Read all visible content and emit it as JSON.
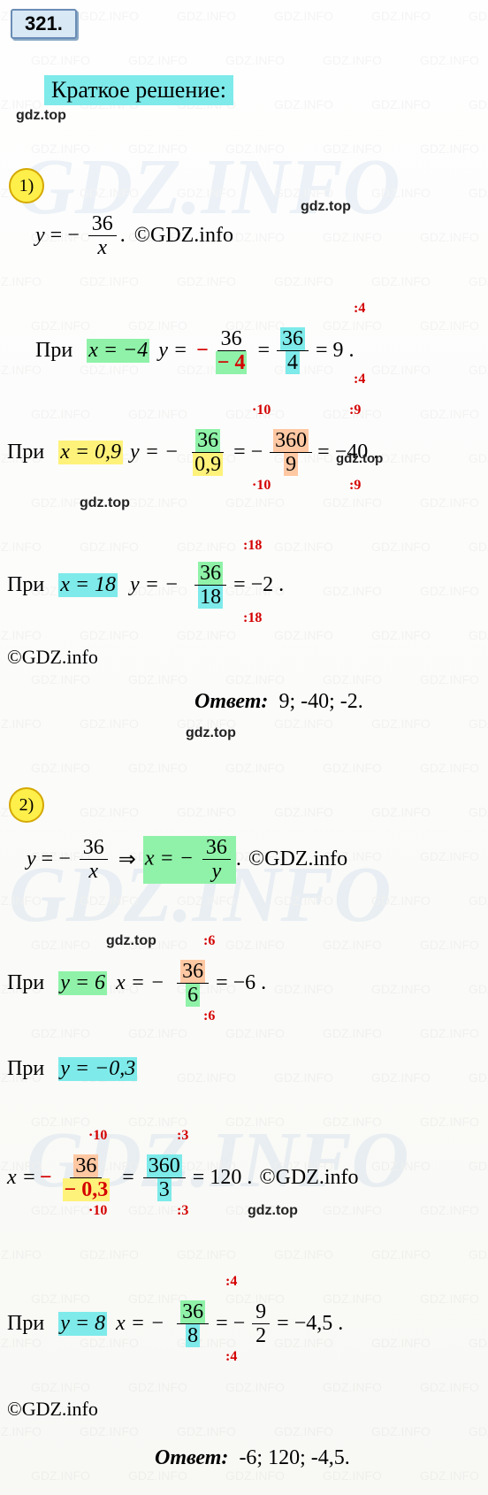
{
  "task_number": "321.",
  "heading": "Краткое решение:",
  "watermark_text_big": "GDZ.INFO",
  "watermark_text_small": "GDZ.INFO",
  "gdz_top_label": "gdz.top",
  "copyright_label": "©GDZ.info",
  "part1": {
    "badge": "1)",
    "formula_y": "y",
    "formula_eq": "= −",
    "formula_num": "36",
    "formula_den": "x",
    "formula_dot": ".",
    "copyright": "©GDZ.info",
    "case1": {
      "at": "При",
      "x_eq": "x = −4",
      "y_eq": "y =",
      "minus": "−",
      "num1": "36",
      "den1": "− 4",
      "eq": "=",
      "num2": "36",
      "den2": "4",
      "result": "= 9 .",
      "op_top1": ":4",
      "op_bot1": ":4"
    },
    "case2": {
      "at": "При",
      "x_eq": "x = 0,9",
      "y_eq": "y = −",
      "num1": "36",
      "den1": "0,9",
      "eq": "= −",
      "num2": "360",
      "den2": "9",
      "result": "= −40 .",
      "op_top1": "·10",
      "op_bot1": "·10",
      "op_top2": ":9",
      "op_bot2": ":9"
    },
    "case3": {
      "at": "При",
      "x_eq": "x = 18",
      "y_eq": "y = −",
      "num1": "36",
      "den1": "18",
      "result": "= −2 .",
      "op_top1": ":18",
      "op_bot1": ":18"
    },
    "answer_label": "Ответ:",
    "answer_vals": "9; -40; -2."
  },
  "part2": {
    "badge": "2)",
    "formula_y": "y",
    "formula_eq": "= −",
    "formula_num": "36",
    "formula_denx": "x",
    "arrow": "⇒",
    "x_eq": "x = −",
    "formula_deny": "y",
    "formula_dot": ".",
    "copyright": "©GDZ.info",
    "case1": {
      "at": "При",
      "y_eq": "y = 6",
      "x_eq_lbl": "x = −",
      "num1": "36",
      "den1": "6",
      "result": "= −6 .",
      "op_top1": ":6",
      "op_bot1": ":6"
    },
    "case2": {
      "at": "При",
      "y_eq": "y = −0,3",
      "x_eq_lbl": "x =",
      "minus": "−",
      "num1": "36",
      "den1": "− 0,3",
      "eq": "=",
      "num2": "360",
      "den2": "3",
      "result": "= 120 .",
      "copyright": "©GDZ.info",
      "op_top1": "·10",
      "op_bot1": "·10",
      "op_top2": ":3",
      "op_bot2": ":3"
    },
    "case3": {
      "at": "При",
      "y_eq": "y = 8",
      "x_eq_lbl": "x = −",
      "num1": "36",
      "den1": "8",
      "eq": "= −",
      "num2": "9",
      "den2": "2",
      "result": "= −4,5 .",
      "op_top1": ":4",
      "op_bot1": ":4"
    },
    "answer_label": "Ответ:",
    "answer_vals": "-6; 120; -4,5."
  },
  "colors": {
    "task_box_bg": "#d8e8f5",
    "task_box_border": "#6a8db5",
    "heading_bg": "#7eeaea",
    "badge_bg": "#ffef4a",
    "badge_border": "#d4a800",
    "hl_green": "#8ff2a8",
    "hl_cyan": "#7eeaea",
    "hl_yellow": "#fff27a",
    "hl_pink": "#ffc8a3",
    "red": "#d40000",
    "wm_blue": "#2a6fb5"
  }
}
